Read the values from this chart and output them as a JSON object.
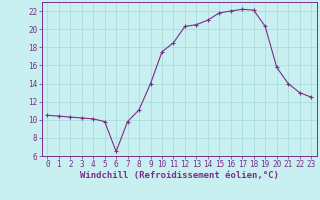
{
  "x": [
    0,
    1,
    2,
    3,
    4,
    5,
    6,
    7,
    8,
    9,
    10,
    11,
    12,
    13,
    14,
    15,
    16,
    17,
    18,
    19,
    20,
    21,
    22,
    23
  ],
  "y": [
    10.5,
    10.4,
    10.3,
    10.2,
    10.1,
    9.8,
    6.5,
    9.8,
    11.1,
    14.0,
    17.5,
    18.5,
    20.3,
    20.5,
    21.0,
    21.8,
    22.0,
    22.2,
    22.1,
    20.3,
    15.8,
    14.0,
    13.0,
    12.5
  ],
  "line_color": "#7b2d8b",
  "marker": "+",
  "bg_color": "#c8f0f0",
  "grid_color": "#a8d8d8",
  "xlabel": "Windchill (Refroidissement éolien,°C)",
  "xlabel_color": "#7b2d8b",
  "tick_color": "#7b2d8b",
  "ylim": [
    6,
    23
  ],
  "xlim": [
    -0.5,
    23.5
  ],
  "yticks": [
    6,
    8,
    10,
    12,
    14,
    16,
    18,
    20,
    22
  ],
  "xticks": [
    0,
    1,
    2,
    3,
    4,
    5,
    6,
    7,
    8,
    9,
    10,
    11,
    12,
    13,
    14,
    15,
    16,
    17,
    18,
    19,
    20,
    21,
    22,
    23
  ],
  "font_size_ticks": 5.5,
  "font_size_xlabel": 6.5,
  "spine_color": "#7b2d8b",
  "linewidth": 0.8,
  "markersize": 3.5
}
